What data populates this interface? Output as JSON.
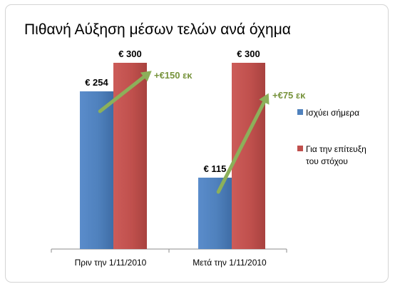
{
  "chart_data": {
    "type": "bar",
    "title": "Πιθανή Αύξηση μέσων τελών ανά όχημα",
    "categories": [
      "Πριν την 1/11/2010",
      "Μετά την 1/11/2010"
    ],
    "series": [
      {
        "name": "Ισχύει σήμερα",
        "values": [
          254,
          115
        ],
        "labels": [
          "€ 254",
          "€ 115"
        ],
        "color": "#4f81bd"
      },
      {
        "name": "Για την επίτευξη του στόχου",
        "values": [
          300,
          300
        ],
        "labels": [
          "€ 300",
          "€ 300"
        ],
        "color": "#c0504d"
      }
    ],
    "annotations": [
      {
        "text": "+€150 εκ",
        "category_index": 0,
        "color": "#77933c"
      },
      {
        "text": "+€75 εκ",
        "category_index": 1,
        "color": "#77933c"
      }
    ],
    "ylim": [
      0,
      300
    ],
    "grid": false,
    "legend": "right"
  }
}
